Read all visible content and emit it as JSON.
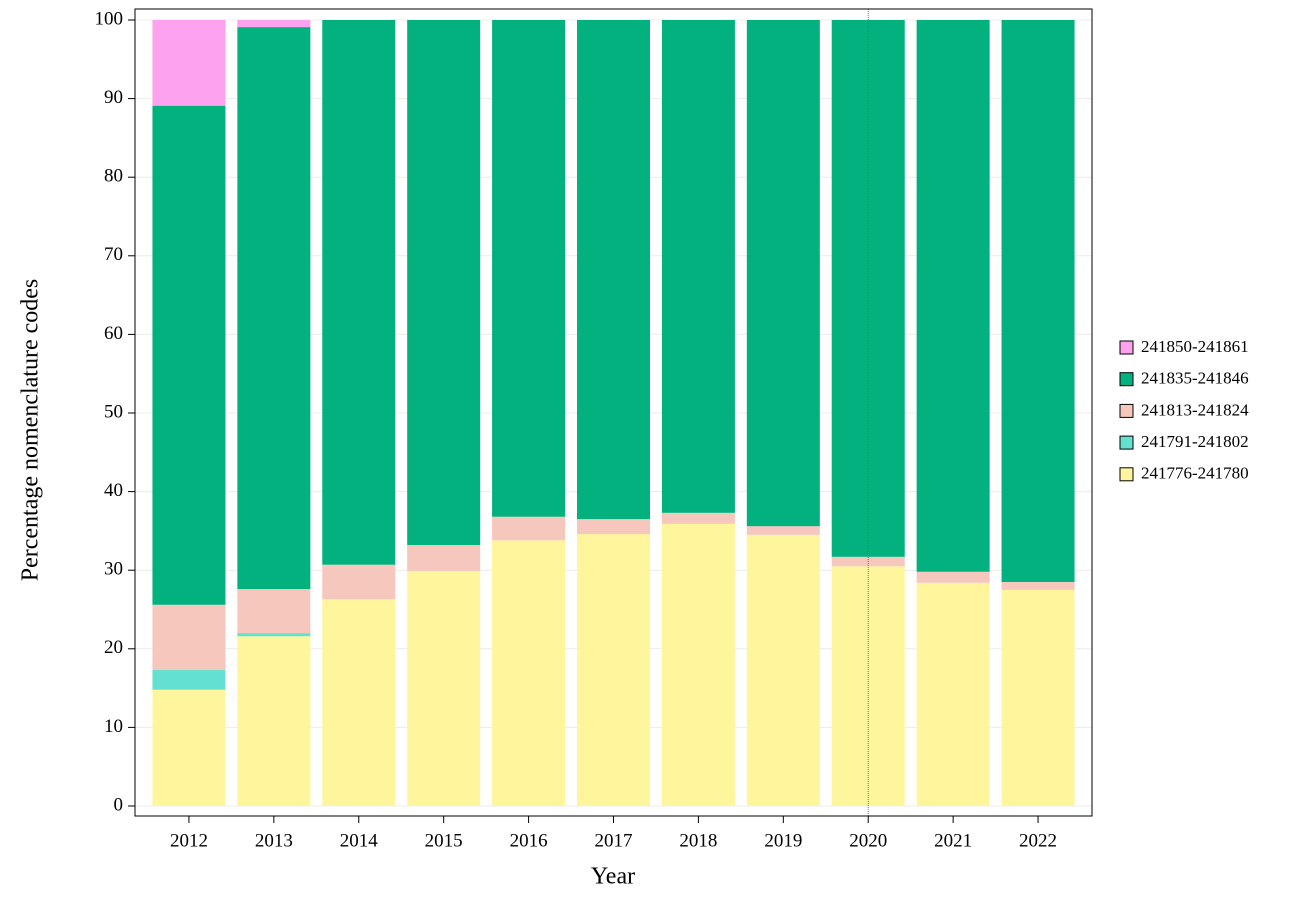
{
  "chart_data": {
    "type": "stacked_bar",
    "x_label": "Year",
    "y_label": "Percentage nomenclature codes",
    "categories": [
      "2012",
      "2013",
      "2014",
      "2015",
      "2016",
      "2017",
      "2018",
      "2019",
      "2020",
      "2021",
      "2022"
    ],
    "series": [
      {
        "name": "241776-241780",
        "color": "#fff59d",
        "values": [
          14.8,
          21.6,
          26.3,
          29.9,
          33.8,
          34.6,
          35.9,
          34.5,
          30.5,
          28.4,
          27.5
        ]
      },
      {
        "name": "241791-241802",
        "color": "#64e0d0",
        "values": [
          2.5,
          0.4,
          0,
          0,
          0,
          0,
          0,
          0,
          0,
          0,
          0
        ]
      },
      {
        "name": "241813-241824",
        "color": "#f6c7bd",
        "values": [
          8.3,
          5.6,
          4.4,
          3.3,
          3.0,
          1.9,
          1.4,
          1.1,
          1.2,
          1.4,
          1.0
        ]
      },
      {
        "name": "241835-241846",
        "color": "#03b17f",
        "values": [
          63.5,
          71.5,
          69.3,
          66.8,
          63.2,
          63.5,
          62.7,
          64.4,
          68.3,
          70.2,
          71.5
        ]
      },
      {
        "name": "241850-241861",
        "color": "#fca2ee",
        "values": [
          10.9,
          0.9,
          0,
          0,
          0,
          0,
          0,
          0,
          0,
          0,
          0
        ]
      }
    ],
    "ylim": [
      0,
      100
    ],
    "yticks": [
      0,
      10,
      20,
      30,
      40,
      50,
      60,
      70,
      80,
      90,
      100
    ],
    "grid": true,
    "legend": "right"
  }
}
